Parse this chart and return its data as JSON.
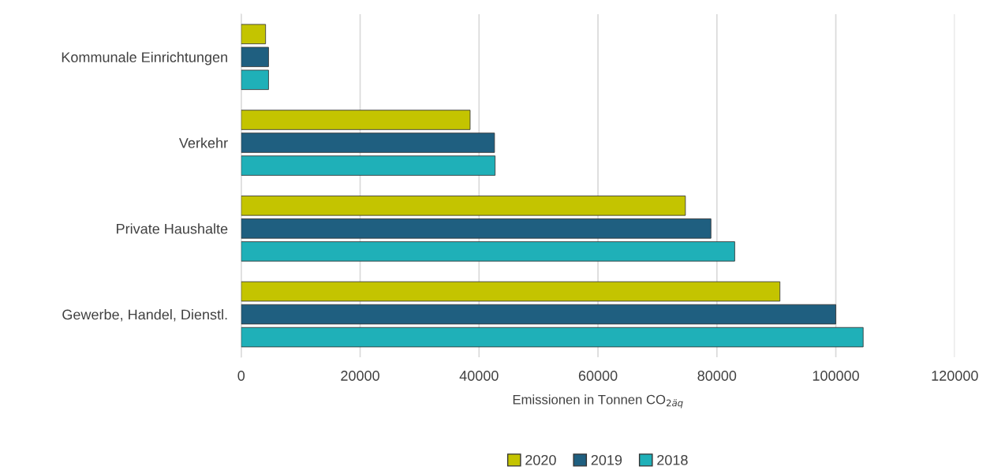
{
  "chart_data": {
    "type": "bar",
    "orientation": "horizontal",
    "xlabel": "Emissionen in Tonnen CO$_{2äq}$",
    "categories": [
      "Kommunale Einrichtungen",
      "Verkehr",
      "Private Haushalte",
      "Gewerbe, Handel, Dienstl."
    ],
    "series": [
      {
        "name": "2020",
        "color": "#c4c400",
        "values": [
          4100,
          38500,
          74700,
          90600
        ]
      },
      {
        "name": "2019",
        "color": "#1f5f80",
        "values": [
          4600,
          42600,
          79000,
          100000
        ]
      },
      {
        "name": "2018",
        "color": "#1fb0b8",
        "values": [
          4600,
          42700,
          83000,
          104600
        ]
      }
    ],
    "xlim": [
      0,
      120000
    ],
    "xticks": [
      0,
      20000,
      40000,
      60000,
      80000,
      100000,
      120000
    ],
    "grid": "x",
    "legend": "bottom"
  }
}
